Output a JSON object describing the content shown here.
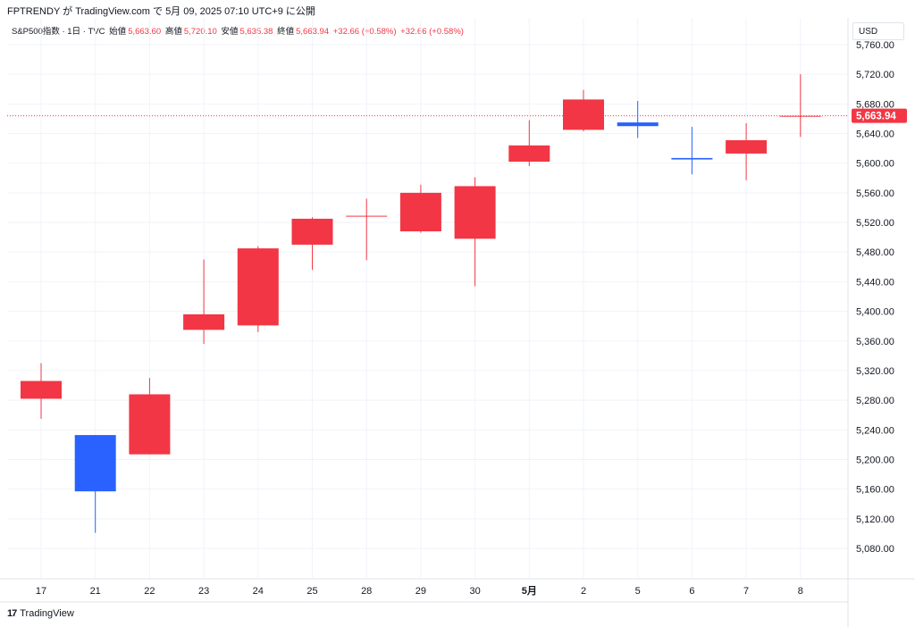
{
  "header": {
    "publish_line": "FPTRENDY が TradingView.com で 5月 09, 2025 07:10 UTC+9 に公開"
  },
  "legend": {
    "symbol": "S&P500指数 · 1日 · TVC",
    "open_label": "始値",
    "open_value": "5,663.60",
    "high_label": "高値",
    "high_value": "5,720.10",
    "low_label": "安値",
    "low_value": "5,635.38",
    "close_label": "終値",
    "close_value": "5,663.94",
    "change_1": "+32.66 (+0.58%)",
    "change_2": "+32.66 (+0.58%)"
  },
  "currency_button": "USD",
  "footer": {
    "brand": "TradingView",
    "logo_glyph": "17"
  },
  "colors": {
    "up": "#f23645",
    "down": "#2962ff",
    "grid": "#f0f3fa",
    "price_line": "#f23645",
    "text": "#131722"
  },
  "chart_data": {
    "type": "candlestick",
    "ylim": [
      5040,
      5780
    ],
    "y_ticks": [
      "5,760.00",
      "5,720.00",
      "5,680.00",
      "5,640.00",
      "5,600.00",
      "5,560.00",
      "5,520.00",
      "5,480.00",
      "5,440.00",
      "5,400.00",
      "5,360.00",
      "5,320.00",
      "5,280.00",
      "5,240.00",
      "5,200.00",
      "5,160.00",
      "5,120.00",
      "5,080.00"
    ],
    "last_price_label": "5,663.94",
    "last_price": 5663.94,
    "candles": [
      {
        "label": "17",
        "open": 5282,
        "high": 5330,
        "low": 5255,
        "close": 5306
      },
      {
        "label": "21",
        "open": 5233,
        "high": 5233,
        "low": 5101,
        "close": 5157
      },
      {
        "label": "22",
        "open": 5207,
        "high": 5310,
        "low": 5207,
        "close": 5288
      },
      {
        "label": "23",
        "open": 5375,
        "high": 5470,
        "low": 5356,
        "close": 5396
      },
      {
        "label": "24",
        "open": 5381,
        "high": 5488,
        "low": 5372,
        "close": 5485
      },
      {
        "label": "25",
        "open": 5490,
        "high": 5527,
        "low": 5456,
        "close": 5525
      },
      {
        "label": "28",
        "open": 5528,
        "high": 5552,
        "low": 5469,
        "close": 5529
      },
      {
        "label": "29",
        "open": 5508,
        "high": 5571,
        "low": 5506,
        "close": 5560
      },
      {
        "label": "30",
        "open": 5498,
        "high": 5581,
        "low": 5434,
        "close": 5569
      },
      {
        "label": "5月",
        "open": 5602,
        "high": 5658,
        "low": 5596,
        "close": 5624
      },
      {
        "label": "2",
        "open": 5645,
        "high": 5699,
        "low": 5643,
        "close": 5686
      },
      {
        "label": "5",
        "open": 5655,
        "high": 5684,
        "low": 5634,
        "close": 5650
      },
      {
        "label": "6",
        "open": 5607,
        "high": 5649,
        "low": 5585,
        "close": 5605
      },
      {
        "label": "7",
        "open": 5613,
        "high": 5654,
        "low": 5577,
        "close": 5631
      },
      {
        "label": "8",
        "open": 5663.6,
        "high": 5720.1,
        "low": 5635.38,
        "close": 5663.94
      }
    ]
  }
}
